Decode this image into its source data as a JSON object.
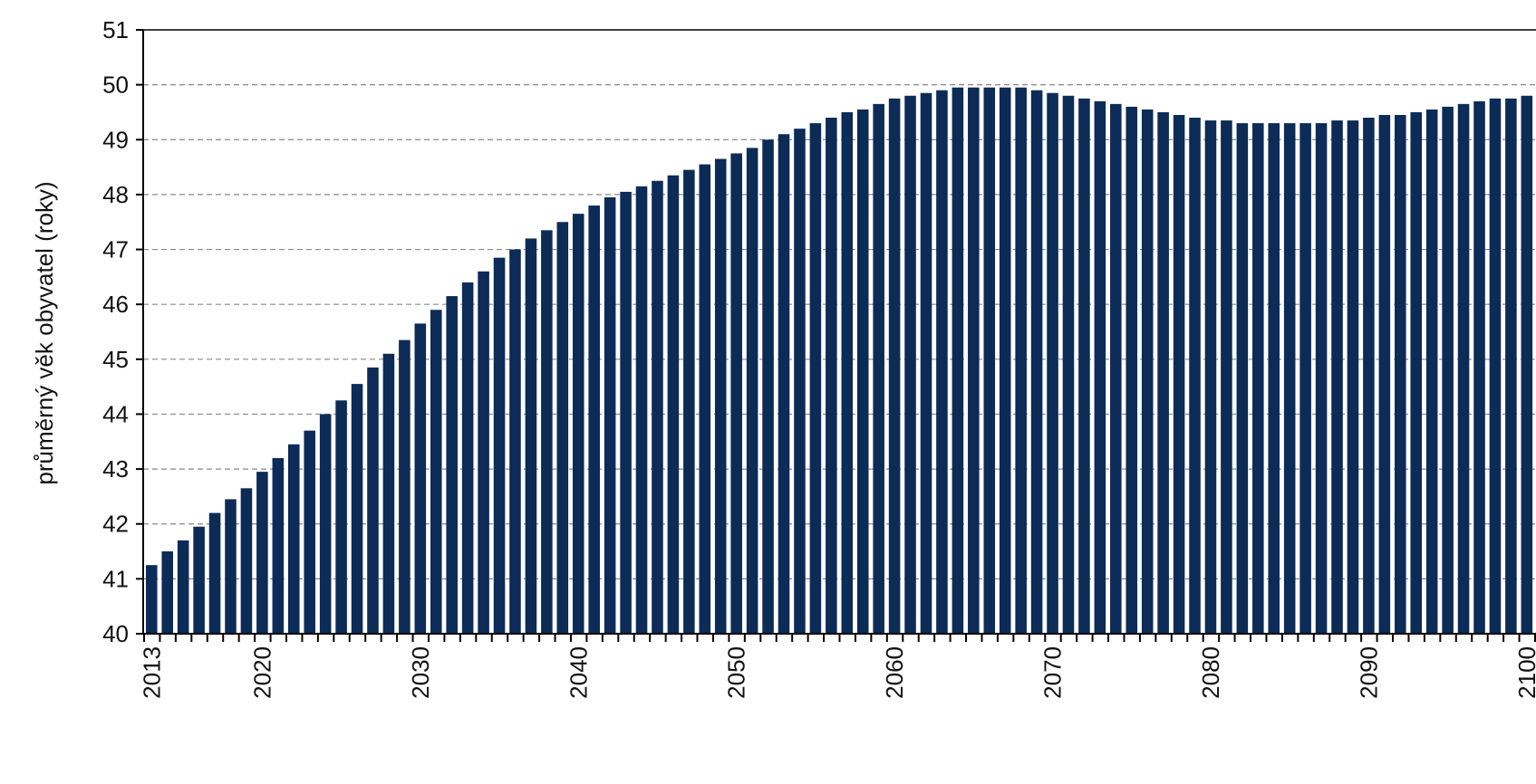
{
  "chart_data": {
    "type": "bar",
    "title": "",
    "xlabel": "",
    "ylabel": "průměrný věk obyvatel (roky)",
    "ylim": [
      40,
      51
    ],
    "yticks": [
      40,
      41,
      42,
      43,
      44,
      45,
      46,
      47,
      48,
      49,
      50,
      51
    ],
    "xticks": [
      2013,
      2020,
      2030,
      2040,
      2050,
      2060,
      2070,
      2080,
      2090,
      2100
    ],
    "grid": "horizontal dashed",
    "legend": "none",
    "colors": {
      "bar": "#0d2b57",
      "grid": "#888888",
      "axis": "#000000"
    },
    "categories": [
      2013,
      2014,
      2015,
      2016,
      2017,
      2018,
      2019,
      2020,
      2021,
      2022,
      2023,
      2024,
      2025,
      2026,
      2027,
      2028,
      2029,
      2030,
      2031,
      2032,
      2033,
      2034,
      2035,
      2036,
      2037,
      2038,
      2039,
      2040,
      2041,
      2042,
      2043,
      2044,
      2045,
      2046,
      2047,
      2048,
      2049,
      2050,
      2051,
      2052,
      2053,
      2054,
      2055,
      2056,
      2057,
      2058,
      2059,
      2060,
      2061,
      2062,
      2063,
      2064,
      2065,
      2066,
      2067,
      2068,
      2069,
      2070,
      2071,
      2072,
      2073,
      2074,
      2075,
      2076,
      2077,
      2078,
      2079,
      2080,
      2081,
      2082,
      2083,
      2084,
      2085,
      2086,
      2087,
      2088,
      2089,
      2090,
      2091,
      2092,
      2093,
      2094,
      2095,
      2096,
      2097,
      2098,
      2099,
      2100
    ],
    "values": [
      41.25,
      41.5,
      41.7,
      41.95,
      42.2,
      42.45,
      42.65,
      42.95,
      43.2,
      43.45,
      43.7,
      44.0,
      44.25,
      44.55,
      44.85,
      45.1,
      45.35,
      45.65,
      45.9,
      46.15,
      46.4,
      46.6,
      46.85,
      47.0,
      47.2,
      47.35,
      47.5,
      47.65,
      47.8,
      47.95,
      48.05,
      48.15,
      48.25,
      48.35,
      48.45,
      48.55,
      48.65,
      48.75,
      48.85,
      49.0,
      49.1,
      49.2,
      49.3,
      49.4,
      49.5,
      49.55,
      49.65,
      49.75,
      49.8,
      49.85,
      49.9,
      49.95,
      49.95,
      49.95,
      49.95,
      49.95,
      49.9,
      49.85,
      49.8,
      49.75,
      49.7,
      49.65,
      49.6,
      49.55,
      49.5,
      49.45,
      49.4,
      49.35,
      49.35,
      49.3,
      49.3,
      49.3,
      49.3,
      49.3,
      49.3,
      49.35,
      49.35,
      49.4,
      49.45,
      49.45,
      49.5,
      49.55,
      49.6,
      49.65,
      49.7,
      49.75,
      49.75,
      49.8
    ]
  }
}
